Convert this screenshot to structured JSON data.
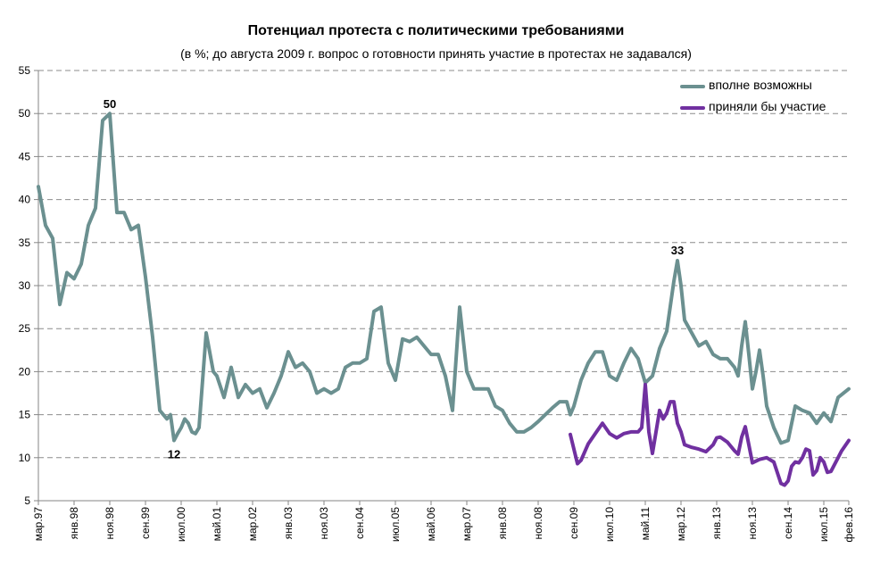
{
  "chart_data": {
    "type": "line",
    "title": "Потенциал протеста с политическими требованиями",
    "subtitle": "(в %; до августа 2009 г. вопрос о готовности принять участие в протестах не задавался)",
    "xlabel": "",
    "ylabel": "",
    "ylim": [
      5,
      55
    ],
    "yticks": [
      5,
      10,
      15,
      20,
      25,
      30,
      35,
      40,
      45,
      50,
      55
    ],
    "xlim": [
      0,
      227
    ],
    "x_tick_labels": [
      "мар.97",
      "янв.98",
      "ноя.98",
      "сен.99",
      "июл.00",
      "май.01",
      "мар.02",
      "янв.03",
      "ноя.03",
      "сен.04",
      "июл.05",
      "май.06",
      "мар.07",
      "янв.08",
      "ноя.08",
      "сен.09",
      "июл.10",
      "май.11",
      "мар.12",
      "янв.13",
      "ноя.13",
      "сен.14",
      "июл.15",
      "фев.16"
    ],
    "x_tick_positions": [
      0,
      10,
      20,
      30,
      40,
      50,
      60,
      70,
      80,
      90,
      100,
      110,
      120,
      130,
      140,
      150,
      160,
      170,
      180,
      190,
      200,
      210,
      220,
      227
    ],
    "grid": {
      "horizontal": true,
      "vertical": false,
      "style": "dashed"
    },
    "legend": "top-right",
    "series": [
      {
        "name": "вполне возможны",
        "color": "#6B9090",
        "points": [
          [
            0,
            41.5
          ],
          [
            2,
            37
          ],
          [
            4,
            35.5
          ],
          [
            6,
            27.8
          ],
          [
            8,
            31.5
          ],
          [
            10,
            30.8
          ],
          [
            12,
            32.5
          ],
          [
            14,
            37
          ],
          [
            16,
            39
          ],
          [
            18,
            49.2
          ],
          [
            20,
            50
          ],
          [
            22,
            38.5
          ],
          [
            24,
            38.5
          ],
          [
            26,
            36.5
          ],
          [
            28,
            37
          ],
          [
            30,
            31
          ],
          [
            32,
            24
          ],
          [
            34,
            15.5
          ],
          [
            36,
            14.5
          ],
          [
            37,
            15
          ],
          [
            38,
            12
          ],
          [
            39,
            12.8
          ],
          [
            40,
            13.5
          ],
          [
            41,
            14.5
          ],
          [
            42,
            14
          ],
          [
            43,
            13
          ],
          [
            44,
            12.8
          ],
          [
            45,
            13.5
          ],
          [
            47,
            24.5
          ],
          [
            49,
            20
          ],
          [
            50,
            19.5
          ],
          [
            52,
            17
          ],
          [
            54,
            20.5
          ],
          [
            56,
            17
          ],
          [
            58,
            18.5
          ],
          [
            60,
            17.5
          ],
          [
            62,
            18
          ],
          [
            64,
            15.8
          ],
          [
            66,
            17.5
          ],
          [
            68,
            19.5
          ],
          [
            70,
            22.3
          ],
          [
            72,
            20.5
          ],
          [
            74,
            21
          ],
          [
            76,
            20
          ],
          [
            78,
            17.5
          ],
          [
            80,
            18
          ],
          [
            82,
            17.5
          ],
          [
            84,
            18
          ],
          [
            86,
            20.5
          ],
          [
            88,
            21
          ],
          [
            90,
            21
          ],
          [
            92,
            21.5
          ],
          [
            94,
            27
          ],
          [
            96,
            27.5
          ],
          [
            98,
            21
          ],
          [
            100,
            19
          ],
          [
            102,
            23.8
          ],
          [
            104,
            23.5
          ],
          [
            106,
            24
          ],
          [
            108,
            23
          ],
          [
            110,
            22
          ],
          [
            112,
            22
          ],
          [
            114,
            19.5
          ],
          [
            116,
            15.5
          ],
          [
            118,
            27.5
          ],
          [
            120,
            20
          ],
          [
            122,
            18
          ],
          [
            124,
            18
          ],
          [
            126,
            18
          ],
          [
            128,
            16
          ],
          [
            130,
            15.5
          ],
          [
            132,
            14
          ],
          [
            134,
            13
          ],
          [
            136,
            13
          ],
          [
            138,
            13.5
          ],
          [
            140,
            14.2
          ],
          [
            142,
            15
          ],
          [
            144,
            15.8
          ],
          [
            146,
            16.5
          ],
          [
            148,
            16.5
          ],
          [
            149,
            15
          ],
          [
            150,
            16
          ],
          [
            152,
            19
          ],
          [
            154,
            21
          ],
          [
            156,
            22.3
          ],
          [
            158,
            22.3
          ],
          [
            160,
            19.5
          ],
          [
            162,
            19
          ],
          [
            164,
            21
          ],
          [
            166,
            22.7
          ],
          [
            168,
            21.5
          ],
          [
            170,
            18.7
          ],
          [
            172,
            19.5
          ],
          [
            174,
            22.7
          ],
          [
            176,
            24.7
          ],
          [
            178,
            30.5
          ],
          [
            179,
            32.9
          ],
          [
            180,
            30
          ],
          [
            181,
            26
          ],
          [
            183,
            24.5
          ],
          [
            185,
            23
          ],
          [
            187,
            23.5
          ],
          [
            189,
            22
          ],
          [
            191,
            21.5
          ],
          [
            193,
            21.5
          ],
          [
            195,
            20.5
          ],
          [
            196,
            19.5
          ],
          [
            197,
            23
          ],
          [
            198,
            25.8
          ],
          [
            199,
            22
          ],
          [
            200,
            18
          ],
          [
            201,
            20
          ],
          [
            202,
            22.5
          ],
          [
            203,
            19.5
          ],
          [
            204,
            16
          ],
          [
            206,
            13.5
          ],
          [
            208,
            11.7
          ],
          [
            210,
            12
          ],
          [
            212,
            16
          ],
          [
            214,
            15.5
          ],
          [
            216,
            15.2
          ],
          [
            218,
            14
          ],
          [
            220,
            15.2
          ],
          [
            222,
            14.2
          ],
          [
            224,
            17
          ],
          [
            227,
            18
          ]
        ]
      },
      {
        "name": "приняли бы участие",
        "color": "#7030A0",
        "points": [
          [
            149,
            12.7
          ],
          [
            150,
            11
          ],
          [
            151,
            9.3
          ],
          [
            152,
            9.7
          ],
          [
            154,
            11.6
          ],
          [
            156,
            12.8
          ],
          [
            158,
            14
          ],
          [
            160,
            12.8
          ],
          [
            162,
            12.3
          ],
          [
            164,
            12.8
          ],
          [
            166,
            13
          ],
          [
            168,
            13
          ],
          [
            169,
            13.5
          ],
          [
            170,
            18.5
          ],
          [
            171,
            13
          ],
          [
            172,
            10.5
          ],
          [
            173,
            13
          ],
          [
            174,
            15.5
          ],
          [
            175,
            14.5
          ],
          [
            176,
            15.2
          ],
          [
            177,
            16.5
          ],
          [
            178,
            16.5
          ],
          [
            179,
            14
          ],
          [
            180,
            13
          ],
          [
            181,
            11.5
          ],
          [
            183,
            11.2
          ],
          [
            185,
            11
          ],
          [
            187,
            10.7
          ],
          [
            189,
            11.5
          ],
          [
            190,
            12.3
          ],
          [
            191,
            12.4
          ],
          [
            193,
            11.8
          ],
          [
            195,
            10.8
          ],
          [
            196,
            10.4
          ],
          [
            197,
            12.4
          ],
          [
            198,
            13.6
          ],
          [
            199,
            11.5
          ],
          [
            200,
            9.4
          ],
          [
            202,
            9.8
          ],
          [
            204,
            10
          ],
          [
            206,
            9.5
          ],
          [
            208,
            7
          ],
          [
            209,
            6.8
          ],
          [
            210,
            7.3
          ],
          [
            211,
            9
          ],
          [
            212,
            9.5
          ],
          [
            213,
            9.4
          ],
          [
            214,
            10
          ],
          [
            215,
            11
          ],
          [
            216,
            10.8
          ],
          [
            217,
            8
          ],
          [
            218,
            8.5
          ],
          [
            219,
            10
          ],
          [
            220,
            9.5
          ],
          [
            221,
            8.3
          ],
          [
            222,
            8.4
          ],
          [
            224,
            10
          ],
          [
            225,
            10.8
          ],
          [
            227,
            12
          ]
        ]
      }
    ],
    "annotations": [
      {
        "text": "50",
        "x": 20,
        "y": 50
      },
      {
        "text": "12",
        "x": 38,
        "y": 12
      },
      {
        "text": "33",
        "x": 179,
        "y": 33
      }
    ]
  }
}
